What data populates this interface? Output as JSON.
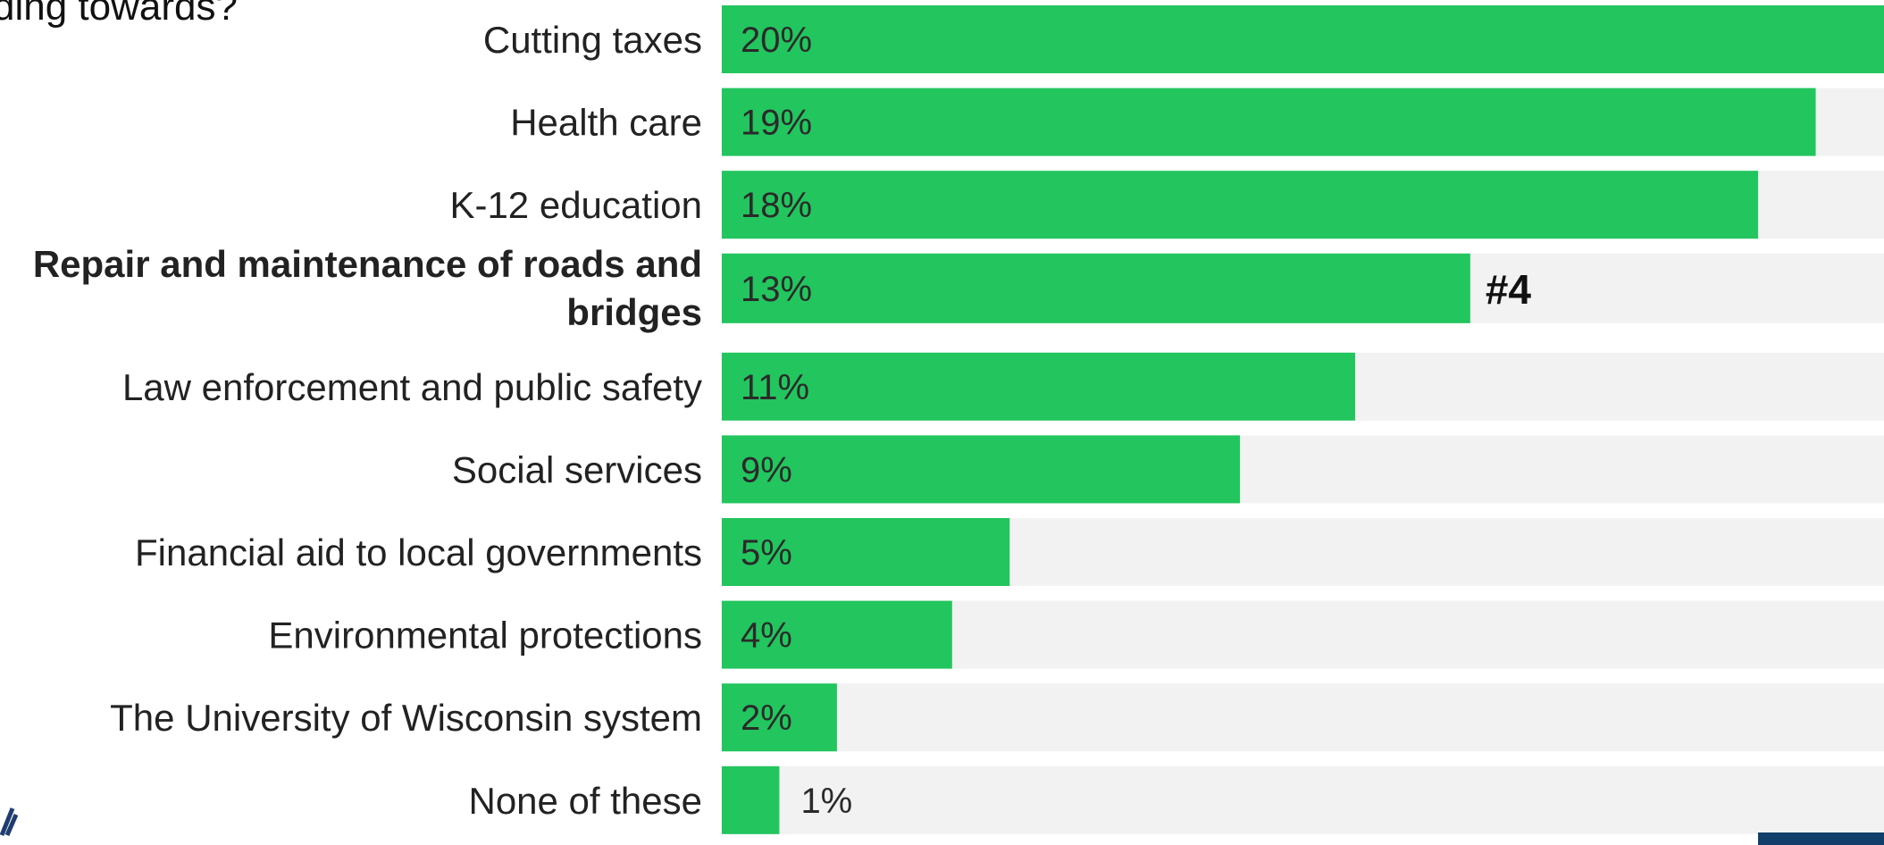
{
  "title_fragment": "ding towards?",
  "chart_data": {
    "type": "bar",
    "orientation": "horizontal",
    "categories": [
      "Cutting taxes",
      "Health care",
      "K-12 education",
      "Repair and maintenance of roads and bridges",
      "Law enforcement and public safety",
      "Social services",
      "Financial aid to local governments",
      "Environmental protections",
      "The University of Wisconsin system",
      "None of these"
    ],
    "values": [
      20,
      19,
      18,
      13,
      11,
      9,
      5,
      4,
      2,
      1
    ],
    "value_labels": [
      "20%",
      "19%",
      "18%",
      "13%",
      "11%",
      "9%",
      "5%",
      "4%",
      "2%",
      "1%"
    ],
    "highlight_index": 3,
    "annotation": "#4",
    "xlim": [
      0,
      20
    ],
    "bar_color": "#22c55e",
    "track_color": "#f2f2f2",
    "grid": false
  }
}
